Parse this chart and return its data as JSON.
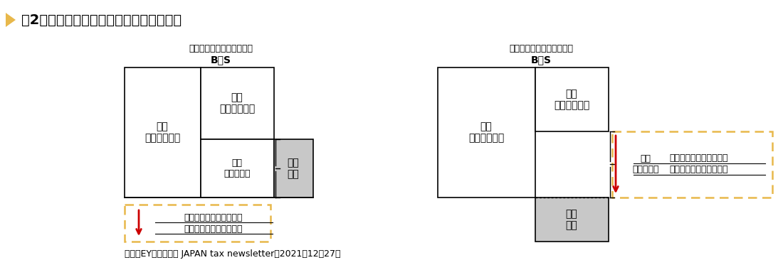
{
  "title": "図2　資産調整勘定等対応金額のイメージ",
  "title_color": "#000000",
  "title_fontsize": 13,
  "title_marker_color": "#E8B84B",
  "left_label": "買収対価＞時価純資産価額",
  "left_bs": "B／S",
  "right_label": "時価純資産価額＞買収対価",
  "right_bs": "B／S",
  "left_asset_text": "資産\n（個別時価）",
  "left_liability_text": "負債\n（個別時価）",
  "left_netasset_text": "時価\n純資産価額",
  "left_acquisition_text": "買収\n対価",
  "left_annotation_line1": "資産調整勘定等対応金額",
  "left_annotation_line2": "（正の買収プレミアム）",
  "right_asset_text": "資産\n（個別時価）",
  "right_liability_text": "負債\n（個別時価）",
  "right_netasset_text": "時価\n純資産価額",
  "right_acquisition_text": "買収\n対価",
  "right_annotation_line1": "資産調整勘定等対応金額",
  "right_annotation_line2": "（負の買収プレミアム）",
  "footnote": "出典：EY税理士法人 JAPAN tax newsletter　2021年12月27日",
  "bg_color": "#ffffff",
  "gray_fill": "#c8c8c8",
  "dashed_yellow": "#E8B84B",
  "arrow_color": "#cc0000"
}
